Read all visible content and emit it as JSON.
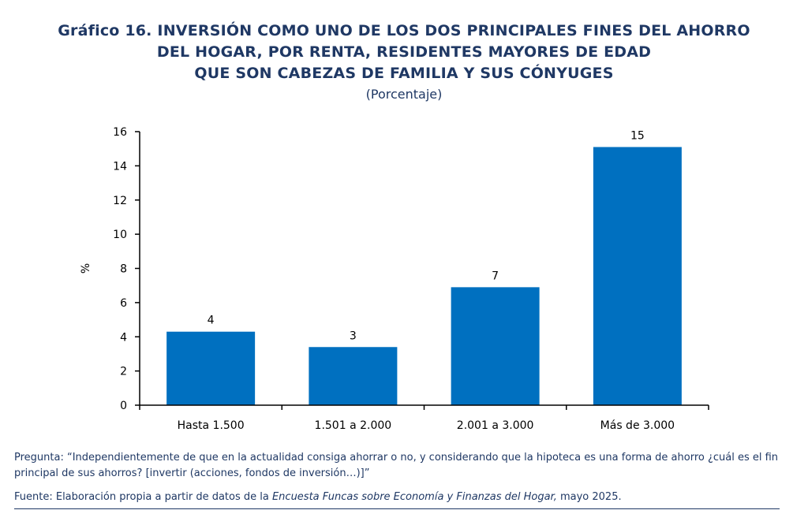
{
  "title_lines": [
    "Gráfico 16. INVERSIÓN COMO UNO DE LOS DOS PRINCIPALES FINES DEL AHORRO",
    "DEL HOGAR, POR RENTA, RESIDENTES MAYORES DE EDAD",
    "QUE SON CABEZAS DE FAMILIA Y SUS CÓNYUGES"
  ],
  "subtitle": "(Porcentaje)",
  "chart_data": {
    "type": "bar",
    "categories": [
      "Hasta 1.500",
      "1.501 a 2.000",
      "2.001 a 3.000",
      "Más de 3.000"
    ],
    "values": [
      4.3,
      3.4,
      6.9,
      15.1
    ],
    "data_labels": [
      "4",
      "3",
      "7",
      "15"
    ],
    "ylabel": "%",
    "ylim": [
      0,
      16
    ],
    "yticks": [
      0,
      2,
      4,
      6,
      8,
      10,
      12,
      14,
      16
    ],
    "ytick_labels": [
      "0",
      "2",
      "4",
      "6",
      "8",
      "10",
      "12",
      "14",
      "16"
    ],
    "grid": false,
    "bar_color": "#0070c0"
  },
  "notes": {
    "question": "Pregunta: “Independientemente de que en la actualidad consiga ahorrar o no, y considerando que la hipoteca es una forma de ahorro ¿cuál es el fin principal de sus ahorros? [invertir (acciones, fondos de inversión…)]”",
    "source_prefix": "Fuente: Elaboración propia a partir de datos de la ",
    "source_title": "Encuesta Funcas sobre Economía y Finanzas del Hogar,",
    "source_suffix": " mayo 2025."
  },
  "colors": {
    "title": "#1f3864",
    "bars": "#0070c0",
    "axis": "#000000"
  }
}
